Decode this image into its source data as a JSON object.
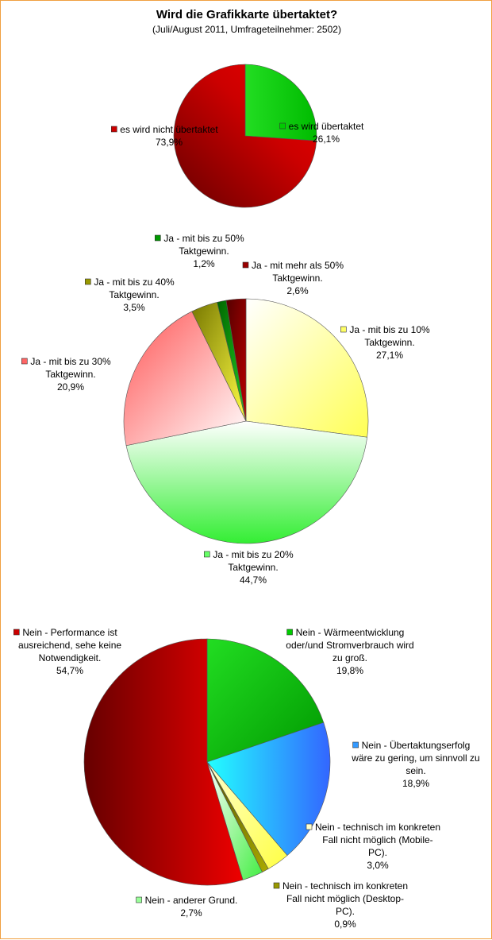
{
  "title": "Wird die Grafikkarte übertaktet?",
  "subtitle": "(Juli/August 2011, Umfrageteilnehmer: 2502)",
  "chart_data": [
    {
      "type": "pie",
      "slices": [
        {
          "label": [
            "es wird übertaktet"
          ],
          "value": 26.1,
          "value_text": "26,1%",
          "color": "#00cc00"
        },
        {
          "label": [
            "es wird nicht übertaktet"
          ],
          "value": 73.9,
          "value_text": "73,9%",
          "color": "#cc0000"
        }
      ]
    },
    {
      "type": "pie",
      "slices": [
        {
          "label": [
            "Ja - mit bis zu 10%",
            "Taktgewinn."
          ],
          "value": 27.1,
          "value_text": "27,1%",
          "color": "#ffff66"
        },
        {
          "label": [
            "Ja - mit bis zu 20%",
            "Taktgewinn."
          ],
          "value": 44.7,
          "value_text": "44,7%",
          "color": "#66ff66"
        },
        {
          "label": [
            "Ja - mit bis zu 30%",
            "Taktgewinn."
          ],
          "value": 20.9,
          "value_text": "20,9%",
          "color": "#ff6666"
        },
        {
          "label": [
            "Ja - mit bis zu 40%",
            "Taktgewinn."
          ],
          "value": 3.5,
          "value_text": "3,5%",
          "color": "#999900"
        },
        {
          "label": [
            "Ja - mit bis zu 50%",
            "Taktgewinn."
          ],
          "value": 1.2,
          "value_text": "1,2%",
          "color": "#009900"
        },
        {
          "label": [
            "Ja - mit mehr als 50%",
            "Taktgewinn."
          ],
          "value": 2.6,
          "value_text": "2,6%",
          "color": "#990000"
        }
      ]
    },
    {
      "type": "pie",
      "slices": [
        {
          "label": [
            "Nein - Wärmeentwicklung",
            "oder/und Stromverbrauch wird",
            "zu groß."
          ],
          "value": 19.8,
          "value_text": "19,8%",
          "color": "#00cc00"
        },
        {
          "label": [
            "Nein - Übertaktungserfolg",
            "wäre zu gering, um sinnvoll zu",
            "sein."
          ],
          "value": 18.9,
          "value_text": "18,9%",
          "color": "#3399ff"
        },
        {
          "label": [
            "Nein - technisch im konkreten",
            "Fall nicht möglich (Mobile-",
            "PC)."
          ],
          "value": 3.0,
          "value_text": "3,0%",
          "color": "#ffffcc"
        },
        {
          "label": [
            "Nein - technisch im konkreten",
            "Fall nicht möglich (Desktop-",
            "PC)."
          ],
          "value": 0.9,
          "value_text": "0,9%",
          "color": "#999900"
        },
        {
          "label": [
            "Nein - anderer Grund."
          ],
          "value": 2.7,
          "value_text": "2,7%",
          "color": "#99ff99"
        },
        {
          "label": [
            "Nein - Performance ist",
            "ausreichend, sehe keine",
            "Notwendigkeit."
          ],
          "value": 54.7,
          "value_text": "54,7%",
          "color": "#cc0000"
        }
      ]
    }
  ]
}
